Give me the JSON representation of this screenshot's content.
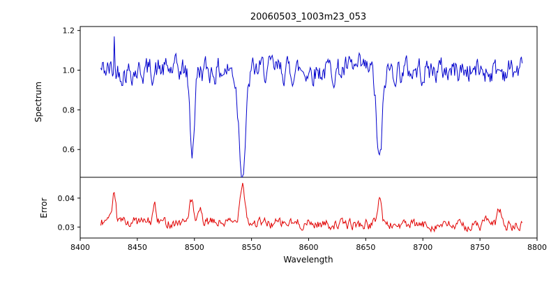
{
  "chart_data": {
    "type": "line",
    "title": "20060503_1003m23_053",
    "xlabel": "Wavelength",
    "grid": false,
    "legend": null,
    "seed": 42,
    "n_points": 500,
    "xticks": [
      {
        "v": 8400,
        "label": "8400"
      },
      {
        "v": 8450,
        "label": "8450"
      },
      {
        "v": 8500,
        "label": "8500"
      },
      {
        "v": 8550,
        "label": "8550"
      },
      {
        "v": 8600,
        "label": "8600"
      },
      {
        "v": 8650,
        "label": "8650"
      },
      {
        "v": 8700,
        "label": "8700"
      },
      {
        "v": 8750,
        "label": "8750"
      },
      {
        "v": 8800,
        "label": "8800"
      }
    ],
    "panels": [
      {
        "name": "spectrum",
        "ylabel": "Spectrum",
        "color": "#0000cc",
        "xlim": [
          8400,
          8800
        ],
        "ylim": [
          0.46,
          1.22
        ],
        "x_range": [
          8418,
          8787
        ],
        "yticks": [
          {
            "v": 0.6,
            "label": "0.6"
          },
          {
            "v": 0.8,
            "label": "0.8"
          },
          {
            "v": 1.0,
            "label": "1.0"
          },
          {
            "v": 1.2,
            "label": "1.2"
          }
        ],
        "baseline": 1.0,
        "noise_amp": 0.12,
        "noise_smooth": 0.55,
        "absorption_lines": [
          {
            "center": 8498,
            "depth": 0.4,
            "width": 2.0
          },
          {
            "center": 8542,
            "depth": 0.5,
            "width": 3.0
          },
          {
            "center": 8662,
            "depth": 0.47,
            "width": 2.5
          }
        ],
        "spikes": [
          {
            "x": 8430,
            "y": 1.17
          }
        ]
      },
      {
        "name": "error",
        "ylabel": "Error",
        "color": "#e10000",
        "xlim": [
          8400,
          8800
        ],
        "ylim": [
          0.0262,
          0.0472
        ],
        "x_range": [
          8418,
          8787
        ],
        "yticks": [
          {
            "v": 0.03,
            "label": "0.03"
          },
          {
            "v": 0.04,
            "label": "0.04"
          }
        ],
        "baseline_start": 0.032,
        "baseline_end": 0.0302,
        "noise_amp": 0.003,
        "noise_smooth": 0.5,
        "peaks": [
          {
            "center": 8430,
            "height": 0.01,
            "width": 1.2
          },
          {
            "center": 8465,
            "height": 0.006,
            "width": 1.2
          },
          {
            "center": 8497,
            "height": 0.0075,
            "width": 1.8
          },
          {
            "center": 8505,
            "height": 0.004,
            "width": 1.2
          },
          {
            "center": 8542,
            "height": 0.0145,
            "width": 2.2
          },
          {
            "center": 8662,
            "height": 0.0095,
            "width": 1.8
          },
          {
            "center": 8755,
            "height": 0.003,
            "width": 1.5
          },
          {
            "center": 8767,
            "height": 0.006,
            "width": 1.8
          }
        ]
      }
    ]
  }
}
